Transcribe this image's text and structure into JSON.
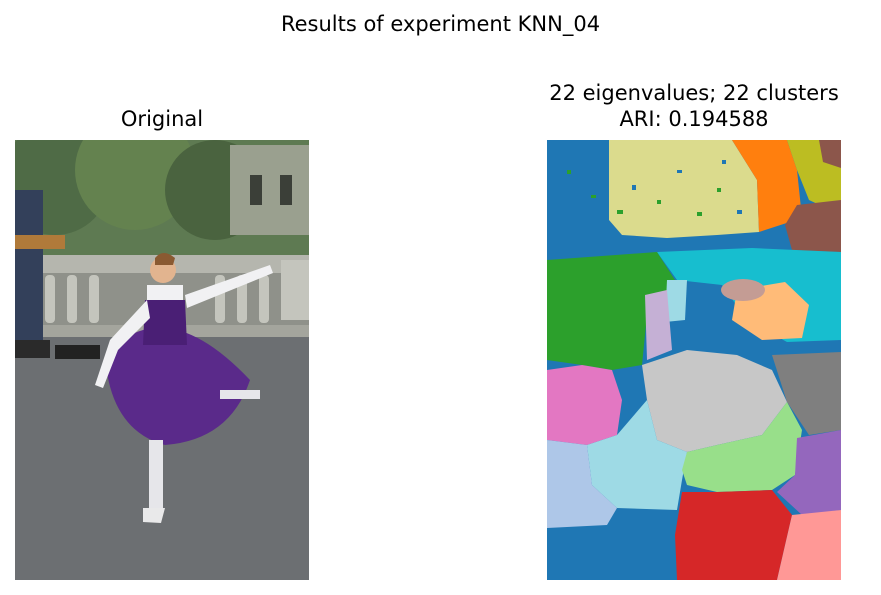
{
  "figure": {
    "suptitle": "Results of experiment KNN_04",
    "left_panel": {
      "title": "Original"
    },
    "right_panel": {
      "title_line1": "22 eigenvalues; 22 clusters",
      "title_line2": "ARI: 0.194588"
    }
  },
  "colors": {
    "photo_sky": "#6f8a61",
    "photo_ground": "#6c6f72",
    "photo_dress": "#5a2a8a",
    "seg_blue": "#1f77b4",
    "seg_khaki": "#dbdb8d",
    "seg_orange": "#ff7f0e",
    "seg_olive": "#bcbd22",
    "seg_brown": "#8c564b",
    "seg_green": "#2ca02c",
    "seg_cyan": "#17becf",
    "seg_light_cyan": "#9edae5",
    "seg_lavender": "#c5b0d5",
    "seg_peach": "#ffbb78",
    "seg_pink": "#e377c2",
    "seg_gray": "#7f7f7f",
    "seg_silver": "#c7c7c7",
    "seg_light_blue": "#aec7e8",
    "seg_light_green": "#98df8a",
    "seg_purple": "#9467bd",
    "seg_red": "#d62728",
    "seg_salmon": "#ff9896",
    "seg_rose": "#c49c94"
  }
}
